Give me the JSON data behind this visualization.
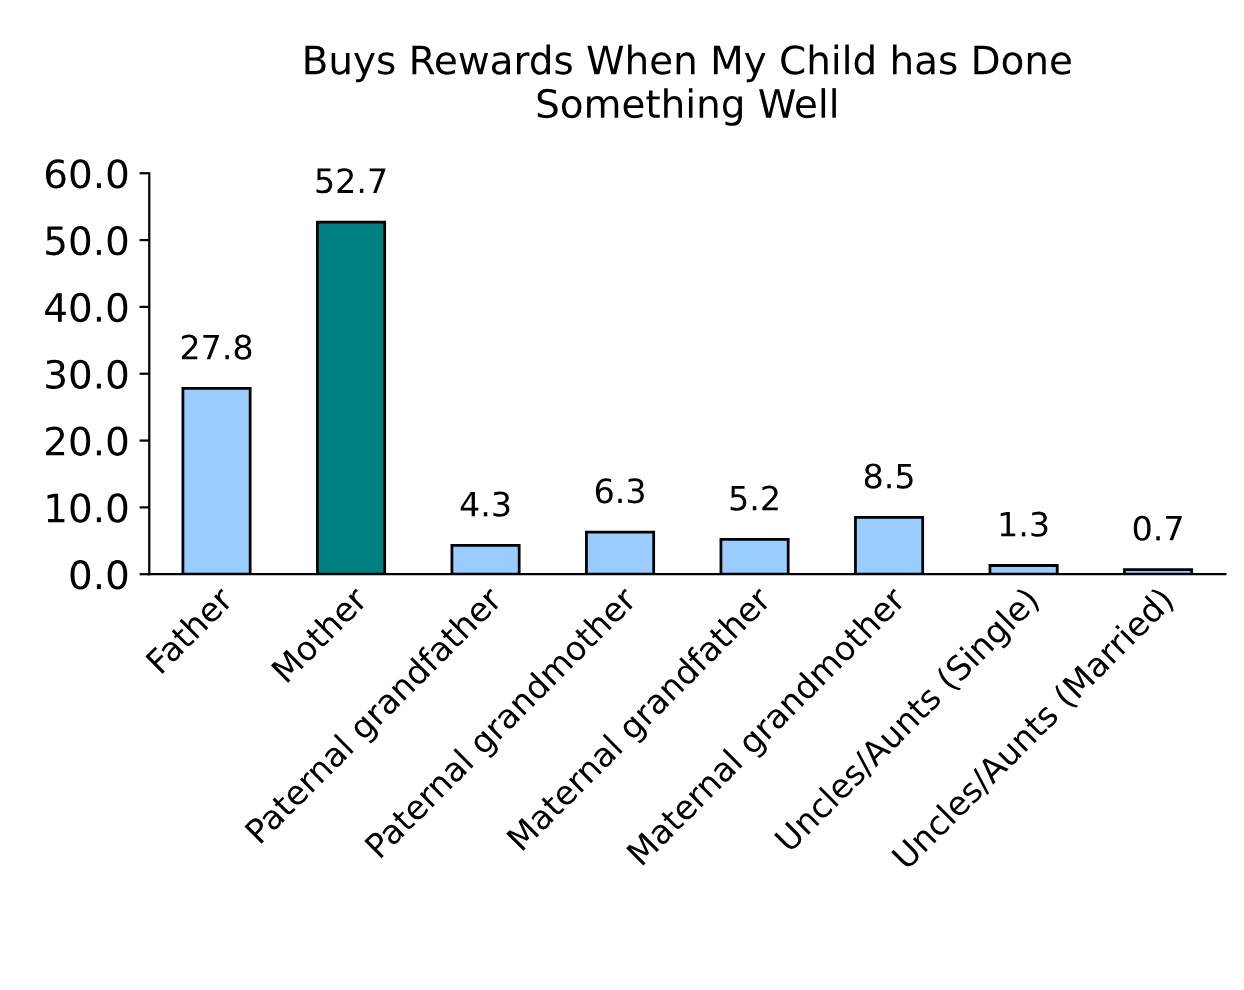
{
  "chart_data": {
    "type": "bar",
    "title": "Buys Rewards When My Child has Done\nSomething Well",
    "categories": [
      "Father",
      "Mother",
      "Paternal grandfather",
      "Paternal grandmother",
      "Maternal grandfather",
      "Maternal grandmother",
      "Uncles/Aunts (Single)",
      "Uncles/Aunts (Married)"
    ],
    "values": [
      27.8,
      52.7,
      4.3,
      6.3,
      5.2,
      8.5,
      1.3,
      0.7
    ],
    "colors": [
      "#99ccff",
      "#008080",
      "#99ccff",
      "#99ccff",
      "#99ccff",
      "#99ccff",
      "#99ccff",
      "#99ccff"
    ],
    "ylim": [
      0,
      60
    ],
    "yticks": [
      {
        "value": 0,
        "label": "0.0"
      },
      {
        "value": 10,
        "label": "10.0"
      },
      {
        "value": 20,
        "label": "20.0"
      },
      {
        "value": 30,
        "label": "30.0"
      },
      {
        "value": 40,
        "label": "40.0"
      },
      {
        "value": 50,
        "label": "50.0"
      },
      {
        "value": 60,
        "label": "60.0"
      }
    ],
    "data_labels": true,
    "grid": false,
    "legend": false
  }
}
